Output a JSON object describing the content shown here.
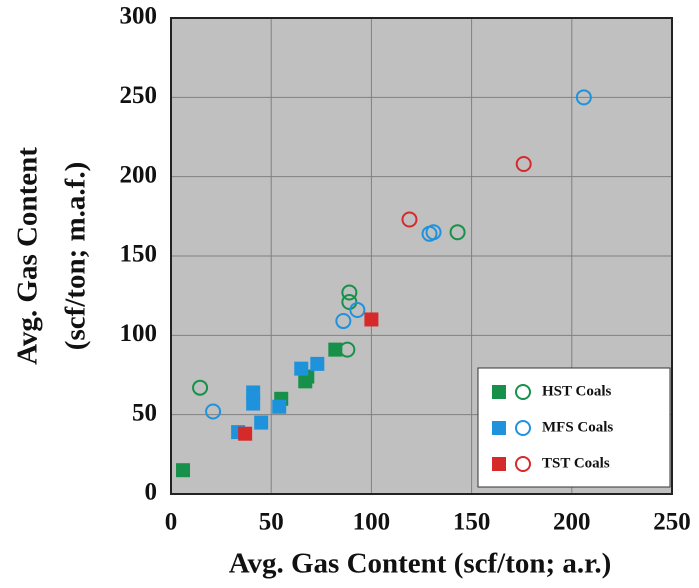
{
  "chart_data": {
    "type": "scatter",
    "xlabel": "Avg. Gas Content (scf/ton; a.r.)",
    "ylabel": [
      "Avg. Gas Content",
      "(scf/ton; m.a.f.)"
    ],
    "xlim": [
      0,
      250
    ],
    "ylim": [
      0,
      300
    ],
    "xticks": [
      0,
      50,
      100,
      150,
      200,
      250
    ],
    "yticks": [
      0,
      50,
      100,
      150,
      200,
      250,
      300
    ],
    "grid": true,
    "legend": "lower right",
    "series": [
      {
        "name": "HST Coals",
        "color": "#17904a",
        "x": [
          6,
          55,
          67,
          68,
          82
        ],
        "values": [
          15,
          60,
          71,
          74,
          91
        ],
        "circle_x": [
          14.5,
          89,
          89,
          88,
          143
        ],
        "circle_values": [
          67,
          127,
          121,
          91,
          165
        ]
      },
      {
        "name": "MFS Coals",
        "color": "#1f92dc",
        "x": [
          33.5,
          41,
          41,
          45,
          54,
          65,
          73
        ],
        "values": [
          39,
          64,
          57,
          45,
          55,
          79,
          82
        ],
        "circle_x": [
          21,
          86,
          93,
          129,
          131,
          206
        ],
        "circle_values": [
          52,
          109,
          116,
          164,
          165,
          250
        ]
      },
      {
        "name": "TST Coals",
        "color": "#d62a2a",
        "x": [
          37,
          100
        ],
        "values": [
          38,
          110
        ],
        "circle_x": [
          119,
          176
        ],
        "circle_values": [
          173,
          208
        ]
      }
    ]
  }
}
